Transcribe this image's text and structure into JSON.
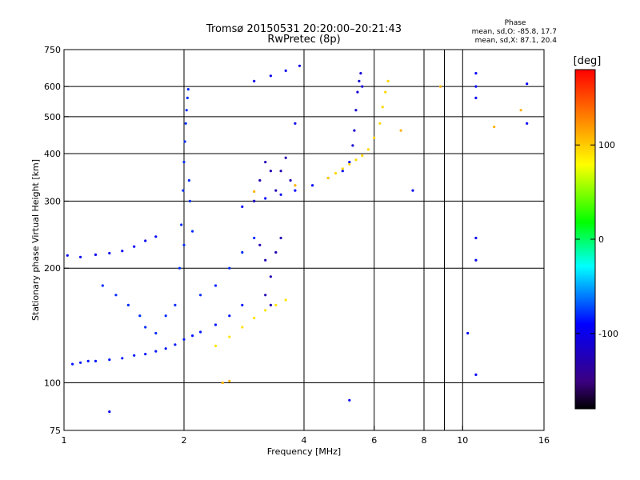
{
  "chart_data": {
    "type": "scatter",
    "title": "Tromsø 20150531 20:20:00–20:21:43",
    "subtitle": "RwPretec (8p)",
    "xlabel": "Frequency [MHz]",
    "ylabel": "Stationary phase Virtual Height [km]",
    "x_scale": "log",
    "y_scale": "log",
    "xlim": [
      1,
      16
    ],
    "ylim": [
      75,
      750
    ],
    "x_ticks": [
      1,
      2,
      4,
      6,
      8,
      10,
      16
    ],
    "x_minor_ticks": [
      9
    ],
    "y_ticks": [
      75,
      100,
      200,
      300,
      400,
      500,
      600,
      750
    ],
    "x_grid": [
      2,
      4,
      6,
      8,
      10
    ],
    "y_grid": [
      100,
      200,
      300,
      400,
      500,
      600
    ],
    "grid": true,
    "stats": {
      "heading": "Phase",
      "line1": "mean, sd,O:  -85.8, 17.7",
      "line2": "mean, sd,X:  87.1, 20.4"
    },
    "colorbar": {
      "label": "[deg]",
      "ticks": [
        100,
        0,
        -100
      ],
      "range": [
        -180,
        180
      ]
    },
    "series": [
      {
        "phase": -85,
        "points": [
          [
            1.05,
            112
          ],
          [
            1.1,
            113
          ],
          [
            1.15,
            114
          ],
          [
            1.2,
            114
          ],
          [
            1.3,
            115
          ],
          [
            1.4,
            116
          ],
          [
            1.5,
            118
          ],
          [
            1.6,
            119
          ],
          [
            1.7,
            121
          ],
          [
            1.8,
            123
          ],
          [
            1.9,
            126
          ],
          [
            2.0,
            130
          ],
          [
            2.1,
            133
          ],
          [
            2.2,
            136
          ],
          [
            2.4,
            142
          ],
          [
            2.6,
            150
          ],
          [
            2.8,
            160
          ]
        ]
      },
      {
        "phase": -95,
        "points": [
          [
            1.02,
            216
          ],
          [
            1.1,
            214
          ],
          [
            1.2,
            217
          ],
          [
            1.3,
            219
          ],
          [
            1.4,
            222
          ],
          [
            1.5,
            228
          ],
          [
            1.6,
            236
          ],
          [
            1.7,
            242
          ]
        ]
      },
      {
        "phase": -80,
        "points": [
          [
            1.95,
            200
          ],
          [
            1.97,
            260
          ],
          [
            1.99,
            320
          ],
          [
            2.0,
            380
          ],
          [
            2.01,
            430
          ],
          [
            2.02,
            480
          ],
          [
            2.03,
            520
          ],
          [
            2.04,
            560
          ],
          [
            2.05,
            590
          ],
          [
            2.06,
            340
          ],
          [
            2.07,
            300
          ],
          [
            2.1,
            250
          ],
          [
            2.0,
            230
          ]
        ]
      },
      {
        "phase": -80,
        "points": [
          [
            1.25,
            180
          ],
          [
            1.35,
            170
          ],
          [
            1.45,
            160
          ],
          [
            1.55,
            150
          ],
          [
            1.6,
            140
          ],
          [
            1.7,
            135
          ],
          [
            1.8,
            150
          ],
          [
            1.9,
            160
          ],
          [
            2.2,
            170
          ],
          [
            2.4,
            180
          ],
          [
            2.6,
            200
          ],
          [
            2.8,
            220
          ],
          [
            3.0,
            240
          ]
        ]
      },
      {
        "phase": -90,
        "points": [
          [
            2.8,
            290
          ],
          [
            3.0,
            300
          ],
          [
            3.2,
            305
          ],
          [
            3.5,
            312
          ],
          [
            3.8,
            320
          ],
          [
            4.2,
            330
          ],
          [
            4.6,
            345
          ],
          [
            5.0,
            360
          ],
          [
            5.2,
            380
          ]
        ]
      },
      {
        "phase": -125,
        "points": [
          [
            3.0,
            300
          ],
          [
            3.1,
            340
          ],
          [
            3.2,
            380
          ],
          [
            3.3,
            360
          ],
          [
            3.4,
            320
          ],
          [
            3.5,
            360
          ],
          [
            3.6,
            390
          ],
          [
            3.7,
            340
          ],
          [
            3.1,
            230
          ],
          [
            3.2,
            210
          ],
          [
            3.3,
            190
          ],
          [
            3.4,
            220
          ],
          [
            3.5,
            240
          ],
          [
            3.2,
            170
          ],
          [
            3.3,
            160
          ]
        ]
      },
      {
        "phase": -100,
        "points": [
          [
            3.0,
            620
          ],
          [
            3.3,
            640
          ],
          [
            3.6,
            660
          ],
          [
            3.9,
            680
          ]
        ]
      },
      {
        "phase": -110,
        "points": [
          [
            5.3,
            420
          ],
          [
            5.35,
            460
          ],
          [
            5.4,
            520
          ],
          [
            5.45,
            580
          ],
          [
            5.5,
            620
          ],
          [
            5.55,
            650
          ],
          [
            5.6,
            600
          ]
        ]
      },
      {
        "phase": 90,
        "points": [
          [
            2.4,
            125
          ],
          [
            2.6,
            132
          ],
          [
            2.8,
            140
          ],
          [
            3.0,
            148
          ],
          [
            3.2,
            155
          ],
          [
            3.4,
            160
          ],
          [
            3.6,
            165
          ]
        ]
      },
      {
        "phase": 95,
        "points": [
          [
            4.6,
            345
          ],
          [
            4.8,
            355
          ],
          [
            5.0,
            365
          ],
          [
            5.2,
            375
          ],
          [
            5.4,
            385
          ],
          [
            5.6,
            395
          ],
          [
            5.8,
            410
          ],
          [
            6.0,
            440
          ],
          [
            6.2,
            480
          ],
          [
            6.3,
            530
          ],
          [
            6.4,
            580
          ],
          [
            6.5,
            620
          ]
        ]
      },
      {
        "phase": 110,
        "points": [
          [
            2.5,
            100
          ],
          [
            2.6,
            101
          ],
          [
            3.0,
            318
          ],
          [
            3.8,
            330
          ],
          [
            7.0,
            460
          ],
          [
            8.8,
            600
          ],
          [
            12.0,
            470
          ],
          [
            14.0,
            520
          ]
        ]
      },
      {
        "phase": -95,
        "points": [
          [
            10.8,
            650
          ],
          [
            10.8,
            600
          ],
          [
            10.8,
            560
          ],
          [
            10.8,
            240
          ],
          [
            10.8,
            210
          ],
          [
            10.8,
            105
          ],
          [
            10.3,
            135
          ],
          [
            14.5,
            610
          ],
          [
            14.5,
            480
          ],
          [
            7.5,
            320
          ],
          [
            5.2,
            90
          ],
          [
            1.3,
            84
          ],
          [
            3.8,
            480
          ]
        ]
      }
    ]
  }
}
